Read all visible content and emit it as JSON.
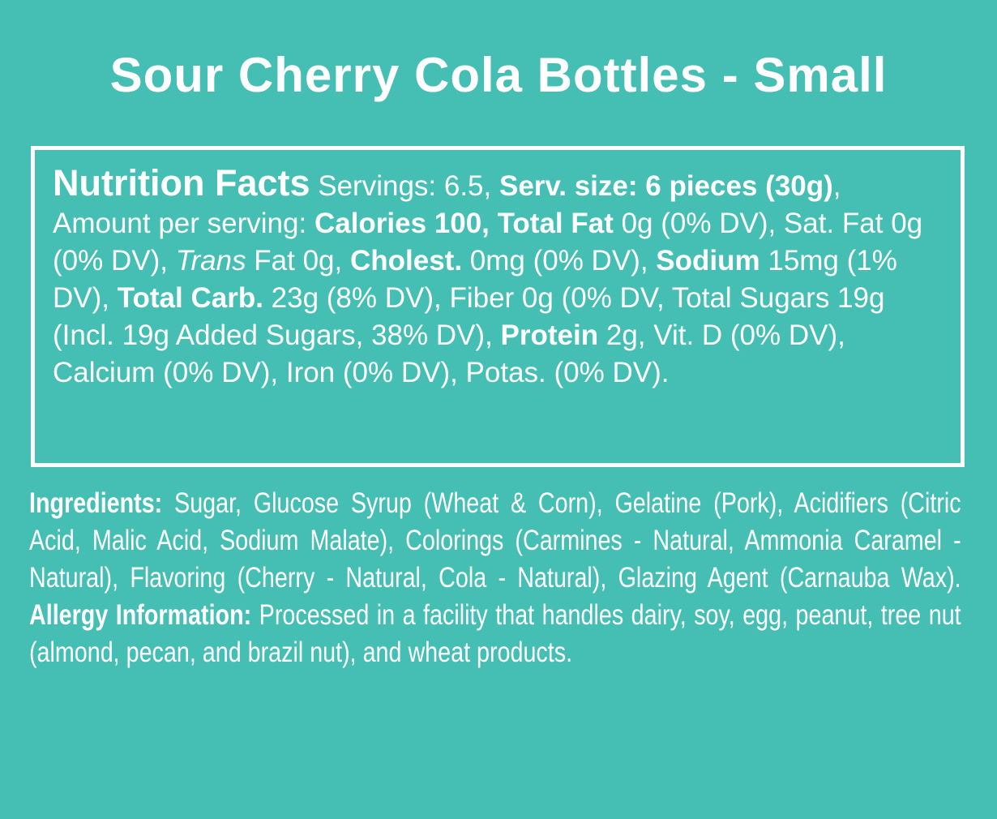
{
  "title": "Sour Cherry Cola Bottles - Small",
  "nutrition": {
    "runs": [
      {
        "text": "Nutrition Facts",
        "style": "heading"
      },
      {
        "text": " Servings: 6.5, ",
        "style": "normal"
      },
      {
        "text": "Serv. size: 6 pieces (30g)",
        "style": "bold"
      },
      {
        "text": ", Amount per serving: ",
        "style": "normal"
      },
      {
        "text": "Calories 100, Total Fat",
        "style": "bold"
      },
      {
        "text": " 0g (0% DV), Sat. Fat 0g (0% DV), ",
        "style": "normal"
      },
      {
        "text": "Trans",
        "style": "italic"
      },
      {
        "text": " Fat 0g, ",
        "style": "normal"
      },
      {
        "text": "Cholest.",
        "style": "bold"
      },
      {
        "text": " 0mg (0% DV), ",
        "style": "normal"
      },
      {
        "text": "Sodium",
        "style": "bold"
      },
      {
        "text": " 15mg (1% DV), ",
        "style": "normal"
      },
      {
        "text": "Total Carb.",
        "style": "bold"
      },
      {
        "text": " 23g (8% DV), Fiber 0g (0% DV, Total Sugars 19g (Incl. 19g Added Sugars, 38% DV), ",
        "style": "normal"
      },
      {
        "text": "Protein",
        "style": "bold"
      },
      {
        "text": " 2g, Vit. D (0% DV), Calcium (0% DV), Iron (0% DV), Potas. (0% DV).",
        "style": "normal"
      }
    ]
  },
  "ingredients": {
    "runs": [
      {
        "text": "Ingredients:",
        "style": "bold"
      },
      {
        "text": " Sugar, Glucose Syrup (Wheat & Corn), Gelatine (Pork), Acidifiers (Citric Acid, Malic Acid, Sodium Malate), Colorings (Carmines - Natural, Ammonia Caramel - Natural), Flavoring (Cherry - Natural, Cola - Natural), Glazing Agent (Carnauba Wax). ",
        "style": "normal"
      },
      {
        "text": "Allergy Information:",
        "style": "bold"
      },
      {
        "text": " Processed in a facility that handles dairy, soy, egg, peanut, tree nut (almond, pecan, and brazil nut), and wheat products.",
        "style": "normal"
      }
    ]
  }
}
